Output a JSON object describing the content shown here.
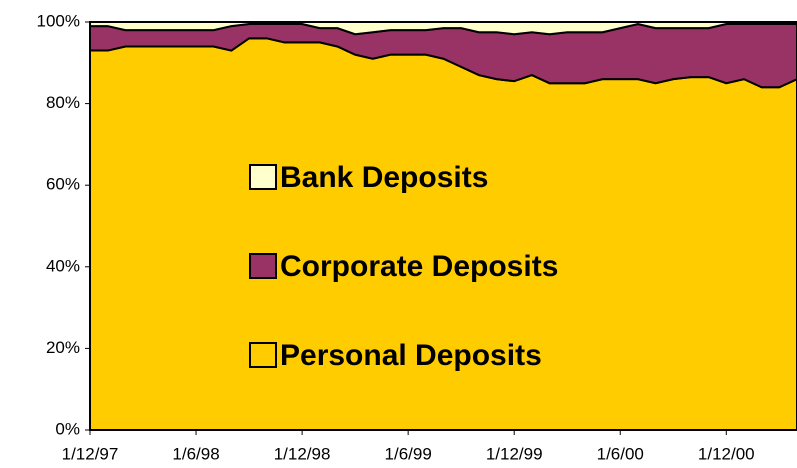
{
  "chart_data": {
    "type": "stacked_area",
    "categories": [
      "1/12/97",
      null,
      null,
      null,
      null,
      null,
      "1/6/98",
      null,
      null,
      null,
      null,
      null,
      "1/12/98",
      null,
      null,
      null,
      null,
      null,
      "1/6/99",
      null,
      null,
      null,
      null,
      null,
      "1/12/99",
      null,
      null,
      null,
      null,
      null,
      "1/6/00",
      null,
      null,
      null,
      null,
      null,
      "1/12/00",
      null,
      null,
      null,
      null
    ],
    "series": [
      {
        "name": "Personal Deposits",
        "color": "#ffcc00",
        "values": [
          93,
          93,
          94,
          94,
          94,
          94,
          94,
          94,
          93,
          96,
          96,
          95,
          95,
          95,
          94,
          92,
          91,
          92,
          92,
          92,
          91,
          89,
          87,
          86,
          85.5,
          87,
          85,
          85,
          85,
          86,
          86,
          86,
          85,
          86,
          86.5,
          86.5,
          85,
          86,
          84,
          84,
          86
        ]
      },
      {
        "name": "Corporate Deposits",
        "color": "#993366",
        "values": [
          6,
          6,
          4,
          4,
          4,
          4,
          4,
          4,
          6,
          3.5,
          3.5,
          4.5,
          4.5,
          3.5,
          4.5,
          5,
          6.5,
          6,
          6,
          6,
          7.5,
          9.5,
          10.5,
          11.5,
          11.5,
          10.5,
          12,
          12.5,
          12.5,
          11.5,
          12.5,
          13.5,
          13.5,
          12.5,
          12,
          12,
          14.5,
          13.5,
          15.5,
          15.5,
          13.5
        ]
      },
      {
        "name": "Bank Deposits",
        "color": "#ffffcc",
        "values": [
          1,
          1,
          2,
          2,
          2,
          2,
          2,
          2,
          1,
          0.5,
          0.5,
          0.5,
          0.5,
          1.5,
          1.5,
          3,
          2.5,
          2,
          2,
          2,
          1.5,
          1.5,
          2.5,
          2.5,
          3,
          2.5,
          3,
          2.5,
          2.5,
          2.5,
          1.5,
          0.5,
          1.5,
          1.5,
          1.5,
          1.5,
          0.5,
          0.5,
          0.5,
          0.5,
          0.5
        ]
      }
    ],
    "ylim": [
      0,
      100
    ],
    "yticks": [
      {
        "value": 0,
        "label": "0%"
      },
      {
        "value": 20,
        "label": "20%"
      },
      {
        "value": 40,
        "label": "40%"
      },
      {
        "value": 60,
        "label": "60%"
      },
      {
        "value": 80,
        "label": "80%"
      },
      {
        "value": 100,
        "label": "100%"
      }
    ],
    "legend": "center"
  }
}
